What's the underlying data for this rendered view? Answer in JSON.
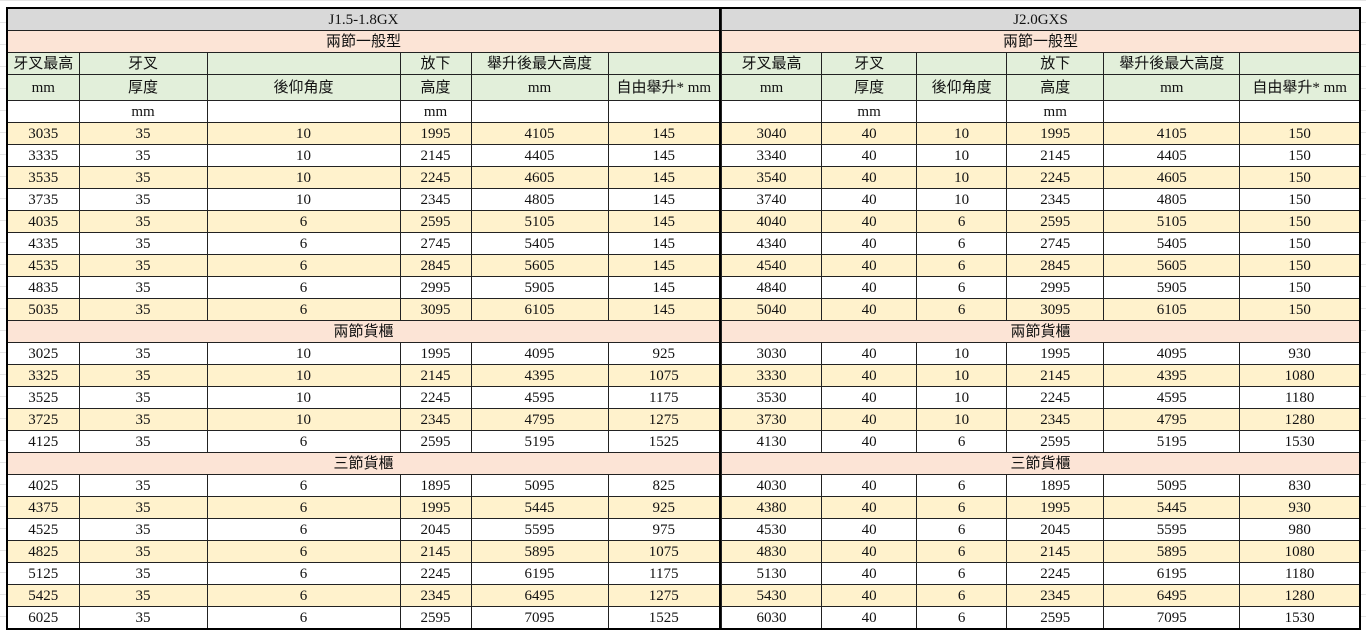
{
  "colors": {
    "title": "#d9d9d9",
    "section": "#fce4d6",
    "header": "#e2efda",
    "stripe": "#fff2cc"
  },
  "tables": [
    {
      "title": "J1.5-1.8GX",
      "header_row1": [
        "牙叉最高",
        "牙叉",
        "",
        "放下",
        "舉升後最大高度",
        ""
      ],
      "header_row2": [
        "mm",
        "厚度",
        "後仰角度",
        "高度",
        "mm",
        "自由舉升* mm"
      ],
      "header_row3": [
        "",
        "mm",
        "",
        "mm",
        "",
        ""
      ],
      "sections": [
        {
          "name": "兩節一般型",
          "rows": [
            [
              "3035",
              "35",
              "10",
              "1995",
              "4105",
              "145"
            ],
            [
              "3335",
              "35",
              "10",
              "2145",
              "4405",
              "145"
            ],
            [
              "3535",
              "35",
              "10",
              "2245",
              "4605",
              "145"
            ],
            [
              "3735",
              "35",
              "10",
              "2345",
              "4805",
              "145"
            ],
            [
              "4035",
              "35",
              "6",
              "2595",
              "5105",
              "145"
            ],
            [
              "4335",
              "35",
              "6",
              "2745",
              "5405",
              "145"
            ],
            [
              "4535",
              "35",
              "6",
              "2845",
              "5605",
              "145"
            ],
            [
              "4835",
              "35",
              "6",
              "2995",
              "5905",
              "145"
            ],
            [
              "5035",
              "35",
              "6",
              "3095",
              "6105",
              "145"
            ]
          ]
        },
        {
          "name": "兩節貨櫃",
          "rows": [
            [
              "3025",
              "35",
              "10",
              "1995",
              "4095",
              "925"
            ],
            [
              "3325",
              "35",
              "10",
              "2145",
              "4395",
              "1075"
            ],
            [
              "3525",
              "35",
              "10",
              "2245",
              "4595",
              "1175"
            ],
            [
              "3725",
              "35",
              "10",
              "2345",
              "4795",
              "1275"
            ],
            [
              "4125",
              "35",
              "6",
              "2595",
              "5195",
              "1525"
            ]
          ]
        },
        {
          "name": "三節貨櫃",
          "rows": [
            [
              "4025",
              "35",
              "6",
              "1895",
              "5095",
              "825"
            ],
            [
              "4375",
              "35",
              "6",
              "1995",
              "5445",
              "925"
            ],
            [
              "4525",
              "35",
              "6",
              "2045",
              "5595",
              "975"
            ],
            [
              "4825",
              "35",
              "6",
              "2145",
              "5895",
              "1075"
            ],
            [
              "5125",
              "35",
              "6",
              "2245",
              "6195",
              "1175"
            ],
            [
              "5425",
              "35",
              "6",
              "2345",
              "6495",
              "1275"
            ],
            [
              "6025",
              "35",
              "6",
              "2595",
              "7095",
              "1525"
            ]
          ]
        }
      ]
    },
    {
      "title": "J2.0GXS",
      "header_row1": [
        "牙叉最高",
        "牙叉",
        "",
        "放下",
        "舉升後最大高度",
        ""
      ],
      "header_row2": [
        "mm",
        "厚度",
        "後仰角度",
        "高度",
        "mm",
        "自由舉升* mm"
      ],
      "header_row3": [
        "",
        "mm",
        "",
        "mm",
        "",
        ""
      ],
      "sections": [
        {
          "name": "兩節一般型",
          "rows": [
            [
              "3040",
              "40",
              "10",
              "1995",
              "4105",
              "150"
            ],
            [
              "3340",
              "40",
              "10",
              "2145",
              "4405",
              "150"
            ],
            [
              "3540",
              "40",
              "10",
              "2245",
              "4605",
              "150"
            ],
            [
              "3740",
              "40",
              "10",
              "2345",
              "4805",
              "150"
            ],
            [
              "4040",
              "40",
              "6",
              "2595",
              "5105",
              "150"
            ],
            [
              "4340",
              "40",
              "6",
              "2745",
              "5405",
              "150"
            ],
            [
              "4540",
              "40",
              "6",
              "2845",
              "5605",
              "150"
            ],
            [
              "4840",
              "40",
              "6",
              "2995",
              "5905",
              "150"
            ],
            [
              "5040",
              "40",
              "6",
              "3095",
              "6105",
              "150"
            ]
          ]
        },
        {
          "name": "兩節貨櫃",
          "rows": [
            [
              "3030",
              "40",
              "10",
              "1995",
              "4095",
              "930"
            ],
            [
              "3330",
              "40",
              "10",
              "2145",
              "4395",
              "1080"
            ],
            [
              "3530",
              "40",
              "10",
              "2245",
              "4595",
              "1180"
            ],
            [
              "3730",
              "40",
              "10",
              "2345",
              "4795",
              "1280"
            ],
            [
              "4130",
              "40",
              "6",
              "2595",
              "5195",
              "1530"
            ]
          ]
        },
        {
          "name": "三節貨櫃",
          "rows": [
            [
              "4030",
              "40",
              "6",
              "1895",
              "5095",
              "830"
            ],
            [
              "4380",
              "40",
              "6",
              "1995",
              "5445",
              "930"
            ],
            [
              "4530",
              "40",
              "6",
              "2045",
              "5595",
              "980"
            ],
            [
              "4830",
              "40",
              "6",
              "2145",
              "5895",
              "1080"
            ],
            [
              "5130",
              "40",
              "6",
              "2245",
              "6195",
              "1180"
            ],
            [
              "5430",
              "40",
              "6",
              "2345",
              "6495",
              "1280"
            ],
            [
              "6030",
              "40",
              "6",
              "2595",
              "7095",
              "1530"
            ]
          ]
        }
      ]
    }
  ]
}
